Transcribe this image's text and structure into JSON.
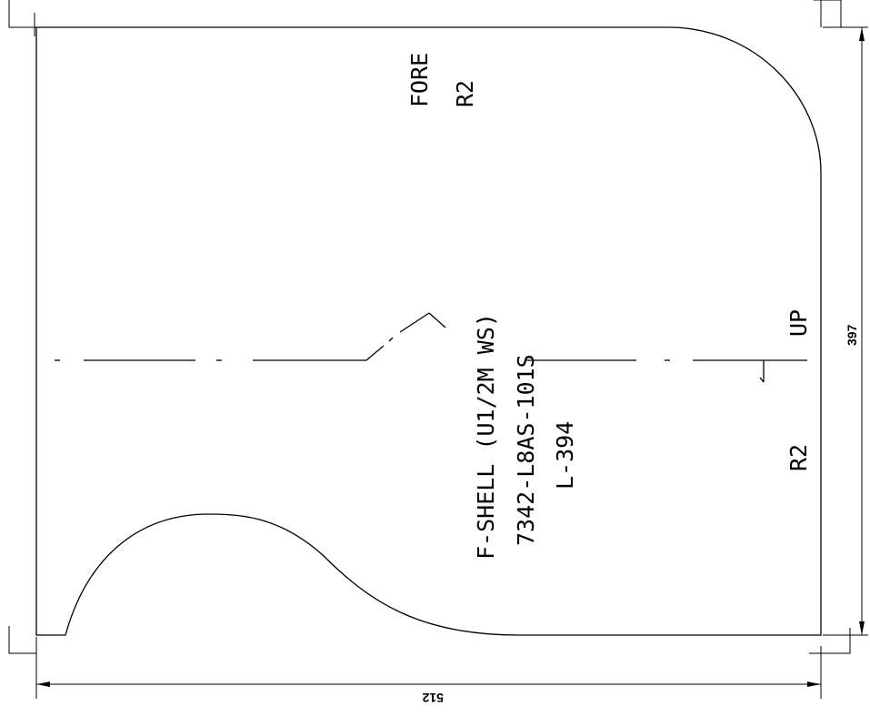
{
  "drawing": {
    "labels": {
      "fore": "FORE",
      "radius_top": "R2",
      "part_name": "F-SHELL (U1/2M WS)",
      "part_number": "7342-L8AS-101S",
      "length_code": "L-394",
      "up": "UP",
      "radius_right": "R2"
    },
    "dimensions": {
      "height": "397",
      "width": "512"
    }
  }
}
